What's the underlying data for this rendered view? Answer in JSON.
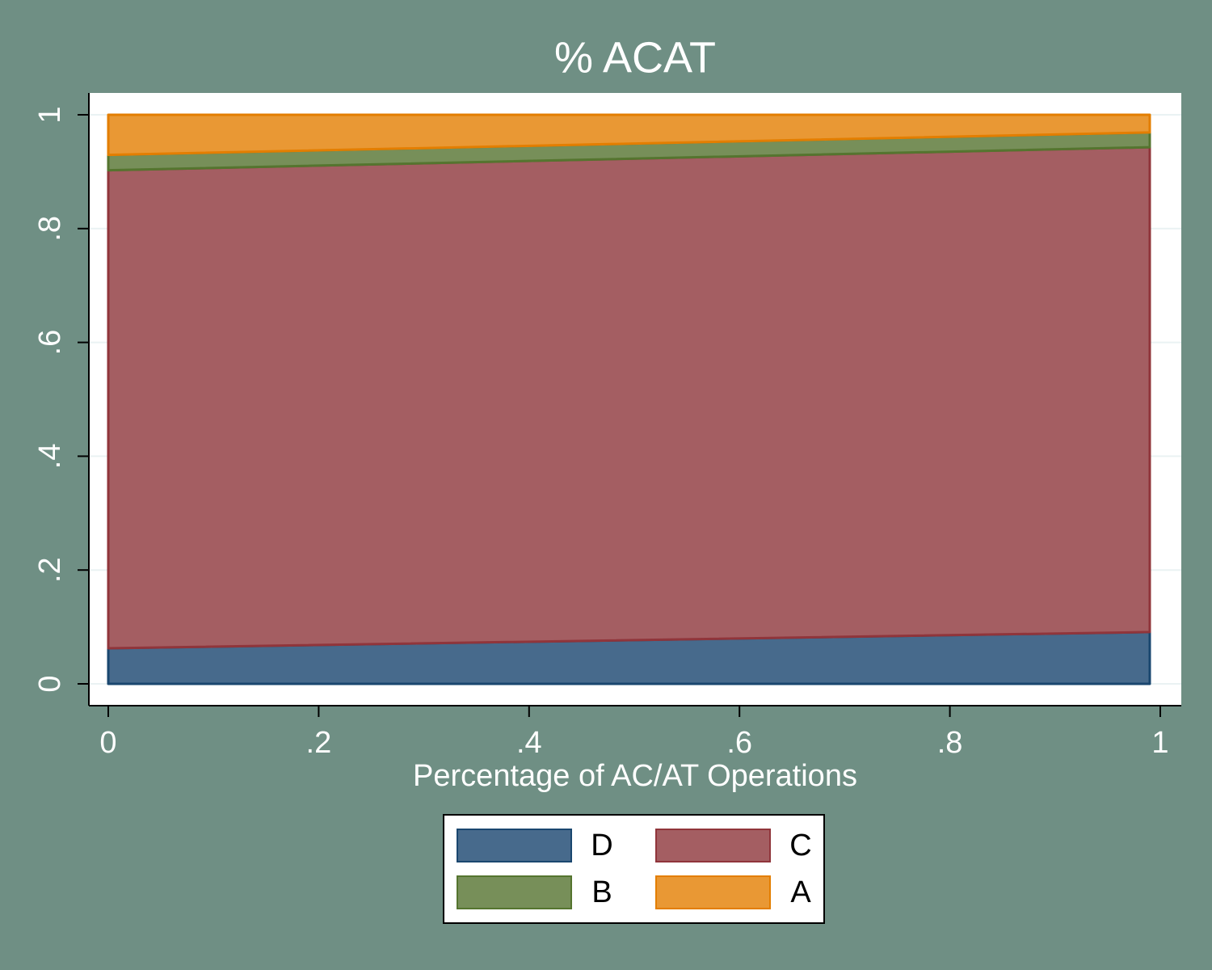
{
  "chart_data": {
    "type": "stacked-area",
    "title": "% ACAT",
    "x_label": "Percentage of AC/AT Operations",
    "x": [
      0,
      0.99
    ],
    "series": [
      {
        "name": "D",
        "color": "#476a8c",
        "edge": "#1a476f",
        "values": [
          0.0625,
          0.091
        ]
      },
      {
        "name": "C",
        "color": "#a45e62",
        "edge": "#90353b",
        "values": [
          0.84,
          0.852
        ]
      },
      {
        "name": "B",
        "color": "#778f59",
        "edge": "#55752f",
        "values": [
          0.027,
          0.026
        ]
      },
      {
        "name": "A",
        "color": "#e99834",
        "edge": "#e37e00",
        "values": [
          0.0705,
          0.031
        ]
      }
    ],
    "xlim": [
      0,
      1
    ],
    "xticks": [
      0,
      {
        "value": 0.2,
        "label": ".2"
      },
      {
        "value": 0.4,
        "label": ".4"
      },
      {
        "value": 0.6,
        "label": ".6"
      },
      {
        "value": 0.8,
        "label": ".8"
      },
      1
    ],
    "ylim": [
      0,
      1
    ],
    "yticks": [
      0,
      {
        "value": 0.2,
        "label": ".2"
      },
      {
        "value": 0.4,
        "label": ".4"
      },
      {
        "value": 0.6,
        "label": ".6"
      },
      {
        "value": 0.8,
        "label": ".8"
      },
      1
    ],
    "grid": true
  }
}
